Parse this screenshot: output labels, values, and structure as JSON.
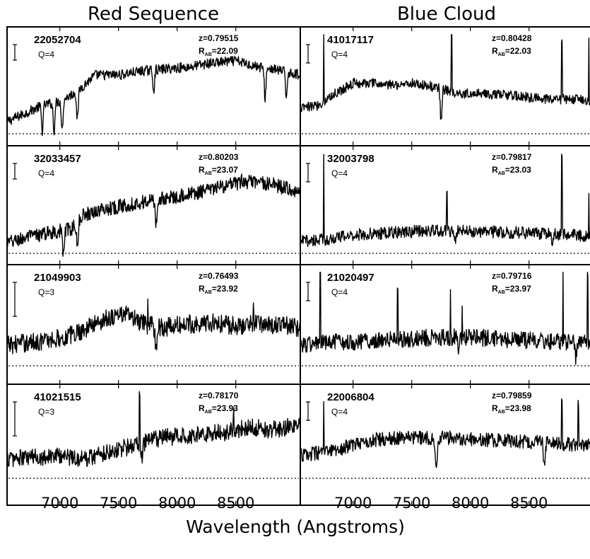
{
  "chart_data": {
    "type": "line",
    "layout": "4 rows x 2 columns grid of spectra panels",
    "column_titles": [
      "Red Sequence",
      "Blue Cloud"
    ],
    "xlabel": "Wavelength (Angstroms)",
    "ylabel": "",
    "xlim": [
      6550,
      9050
    ],
    "xticks": [
      7000,
      7500,
      8000,
      8500
    ],
    "xtick_labels": [
      "7000",
      "7500",
      "8000",
      "8500"
    ],
    "grid": false,
    "baseline_style": "dotted",
    "panels": [
      {
        "id": "22052704",
        "quality": "Q=4",
        "redshift": "z=0.79515",
        "rmag": "22.09",
        "column": 0,
        "row": 0,
        "spectrum": [
          [
            6550,
            0.12
          ],
          [
            6700,
            0.2
          ],
          [
            6850,
            0.28
          ],
          [
            7000,
            0.32
          ],
          [
            7150,
            0.42
          ],
          [
            7300,
            0.58
          ],
          [
            7500,
            0.58
          ],
          [
            7700,
            0.62
          ],
          [
            7900,
            0.64
          ],
          [
            8100,
            0.66
          ],
          [
            8300,
            0.7
          ],
          [
            8500,
            0.72
          ],
          [
            8700,
            0.66
          ],
          [
            8900,
            0.62
          ],
          [
            9050,
            0.58
          ]
        ],
        "noise": 0.05,
        "absorptions": [
          [
            6850,
            0.25
          ],
          [
            6950,
            0.28
          ],
          [
            7020,
            0.3
          ],
          [
            7150,
            0.28
          ],
          [
            7800,
            0.2
          ],
          [
            8750,
            0.3
          ],
          [
            8930,
            0.25
          ]
        ],
        "emissions": []
      },
      {
        "id": "32033457",
        "quality": "Q=4",
        "redshift": "z=0.80203",
        "rmag": "23.07",
        "column": 0,
        "row": 1,
        "spectrum": [
          [
            6550,
            0.1
          ],
          [
            6700,
            0.15
          ],
          [
            6900,
            0.2
          ],
          [
            7100,
            0.24
          ],
          [
            7200,
            0.38
          ],
          [
            7400,
            0.44
          ],
          [
            7600,
            0.48
          ],
          [
            7800,
            0.52
          ],
          [
            8000,
            0.56
          ],
          [
            8200,
            0.6
          ],
          [
            8400,
            0.66
          ],
          [
            8600,
            0.7
          ],
          [
            8800,
            0.68
          ],
          [
            9050,
            0.6
          ]
        ],
        "noise": 0.07,
        "absorptions": [
          [
            7030,
            0.25
          ],
          [
            7150,
            0.28
          ],
          [
            7820,
            0.25
          ]
        ],
        "emissions": [
          [
            8550,
            0.15
          ]
        ]
      },
      {
        "id": "21049903",
        "quality": "Q=3",
        "redshift": "z=0.76493",
        "rmag": "23.92",
        "column": 0,
        "row": 2,
        "spectrum": [
          [
            6550,
            0.22
          ],
          [
            6800,
            0.25
          ],
          [
            7050,
            0.3
          ],
          [
            7200,
            0.38
          ],
          [
            7400,
            0.5
          ],
          [
            7550,
            0.55
          ],
          [
            7700,
            0.44
          ],
          [
            7900,
            0.4
          ],
          [
            8100,
            0.44
          ],
          [
            8300,
            0.45
          ],
          [
            8500,
            0.42
          ],
          [
            8700,
            0.45
          ],
          [
            9050,
            0.4
          ]
        ],
        "noise": 0.1,
        "absorptions": [
          [
            7820,
            0.25
          ]
        ],
        "emissions": [
          [
            7750,
            0.3
          ],
          [
            8650,
            0.2
          ]
        ]
      },
      {
        "id": "41021515",
        "quality": "Q=3",
        "redshift": "z=0.78170",
        "rmag": "23.93",
        "column": 0,
        "row": 3,
        "spectrum": [
          [
            6550,
            0.22
          ],
          [
            6800,
            0.24
          ],
          [
            7000,
            0.26
          ],
          [
            7200,
            0.22
          ],
          [
            7400,
            0.3
          ],
          [
            7600,
            0.36
          ],
          [
            7800,
            0.44
          ],
          [
            8000,
            0.48
          ],
          [
            8200,
            0.5
          ],
          [
            8400,
            0.52
          ],
          [
            8600,
            0.58
          ],
          [
            8800,
            0.55
          ],
          [
            9050,
            0.6
          ]
        ],
        "noise": 0.1,
        "absorptions": [
          [
            7700,
            0.2
          ]
        ],
        "emissions": [
          [
            7680,
            0.55
          ],
          [
            8480,
            0.2
          ]
        ]
      },
      {
        "id": "41017117",
        "quality": "Q=4",
        "redshift": "z=0.80428",
        "rmag": "22.03",
        "column": 1,
        "row": 0,
        "spectrum": [
          [
            6550,
            0.25
          ],
          [
            6700,
            0.28
          ],
          [
            6850,
            0.4
          ],
          [
            7000,
            0.5
          ],
          [
            7150,
            0.5
          ],
          [
            7300,
            0.48
          ],
          [
            7500,
            0.5
          ],
          [
            7700,
            0.46
          ],
          [
            7900,
            0.4
          ],
          [
            8100,
            0.4
          ],
          [
            8300,
            0.38
          ],
          [
            8500,
            0.36
          ],
          [
            8700,
            0.34
          ],
          [
            8900,
            0.34
          ],
          [
            9050,
            0.33
          ]
        ],
        "noise": 0.05,
        "absorptions": [
          [
            7750,
            0.3
          ]
        ],
        "emissions": [
          [
            6750,
            0.7
          ],
          [
            7840,
            0.55
          ],
          [
            8780,
            0.6
          ],
          [
            9010,
            0.6
          ]
        ]
      },
      {
        "id": "32003798",
        "quality": "Q=4",
        "redshift": "z=0.79817",
        "rmag": "23.03",
        "column": 1,
        "row": 1,
        "spectrum": [
          [
            6550,
            0.12
          ],
          [
            6800,
            0.14
          ],
          [
            7000,
            0.18
          ],
          [
            7300,
            0.2
          ],
          [
            7600,
            0.22
          ],
          [
            7900,
            0.22
          ],
          [
            8200,
            0.21
          ],
          [
            8500,
            0.2
          ],
          [
            8800,
            0.18
          ],
          [
            9050,
            0.17
          ]
        ],
        "noise": 0.06,
        "absorptions": [
          [
            7870,
            0.12
          ],
          [
            8700,
            0.1
          ]
        ],
        "emissions": [
          [
            6750,
            0.85
          ],
          [
            7800,
            0.35
          ],
          [
            8780,
            0.75
          ],
          [
            9010,
            0.4
          ]
        ]
      },
      {
        "id": "21020497",
        "quality": "Q=4",
        "redshift": "z=0.79716",
        "rmag": "23.97",
        "column": 1,
        "row": 2,
        "spectrum": [
          [
            6550,
            0.22
          ],
          [
            6800,
            0.24
          ],
          [
            7100,
            0.26
          ],
          [
            7400,
            0.28
          ],
          [
            7700,
            0.3
          ],
          [
            8000,
            0.3
          ],
          [
            8300,
            0.28
          ],
          [
            8600,
            0.26
          ],
          [
            8900,
            0.25
          ],
          [
            9050,
            0.24
          ]
        ],
        "noise": 0.09,
        "absorptions": [
          [
            7900,
            0.2
          ],
          [
            8900,
            0.18
          ]
        ],
        "emissions": [
          [
            6720,
            0.8
          ],
          [
            7380,
            0.45
          ],
          [
            7830,
            0.55
          ],
          [
            7930,
            0.4
          ],
          [
            8790,
            0.85
          ],
          [
            9000,
            0.7
          ]
        ]
      },
      {
        "id": "22006804",
        "quality": "Q=4",
        "redshift": "z=0.79859",
        "rmag": "23.98",
        "column": 1,
        "row": 3,
        "spectrum": [
          [
            6550,
            0.26
          ],
          [
            6800,
            0.3
          ],
          [
            7000,
            0.38
          ],
          [
            7200,
            0.44
          ],
          [
            7500,
            0.46
          ],
          [
            7800,
            0.46
          ],
          [
            8100,
            0.44
          ],
          [
            8400,
            0.42
          ],
          [
            8700,
            0.4
          ],
          [
            9050,
            0.36
          ]
        ],
        "noise": 0.08,
        "absorptions": [
          [
            7710,
            0.35
          ],
          [
            8630,
            0.25
          ]
        ],
        "emissions": [
          [
            6750,
            0.6
          ],
          [
            8780,
            0.55
          ],
          [
            8920,
            0.5
          ]
        ]
      }
    ]
  }
}
